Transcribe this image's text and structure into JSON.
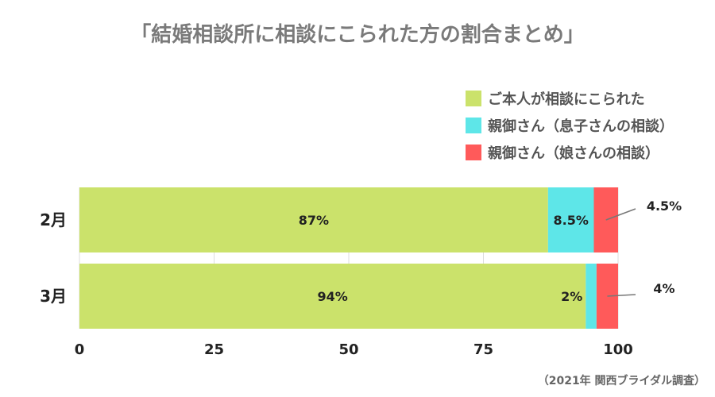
{
  "chart_data": {
    "type": "bar",
    "orientation": "horizontal",
    "stacked": true,
    "title": "「結婚相談所に相談にこられた方の割合まとめ」",
    "categories": [
      "2月",
      "3月"
    ],
    "series": [
      {
        "name": "ご本人が相談にこられた",
        "values": [
          87,
          94
        ],
        "labels": [
          "87%",
          "94%"
        ]
      },
      {
        "name": "親御さん（息子さんの相談）",
        "values": [
          8.5,
          2
        ],
        "labels": [
          "8.5%",
          "2%"
        ]
      },
      {
        "name": "親御さん（娘さんの相談）",
        "values": [
          4.5,
          4
        ],
        "labels": [
          "4.5%",
          "4%"
        ]
      }
    ],
    "colors": [
      "#cbe26b",
      "#5ee6e8",
      "#ff5a5a"
    ],
    "xlim": [
      0,
      100
    ],
    "xticks": [
      0,
      25,
      50,
      75,
      100
    ],
    "grid": true,
    "legend_position": "top-right",
    "source": "（2021年 関西ブライダル調査）"
  }
}
